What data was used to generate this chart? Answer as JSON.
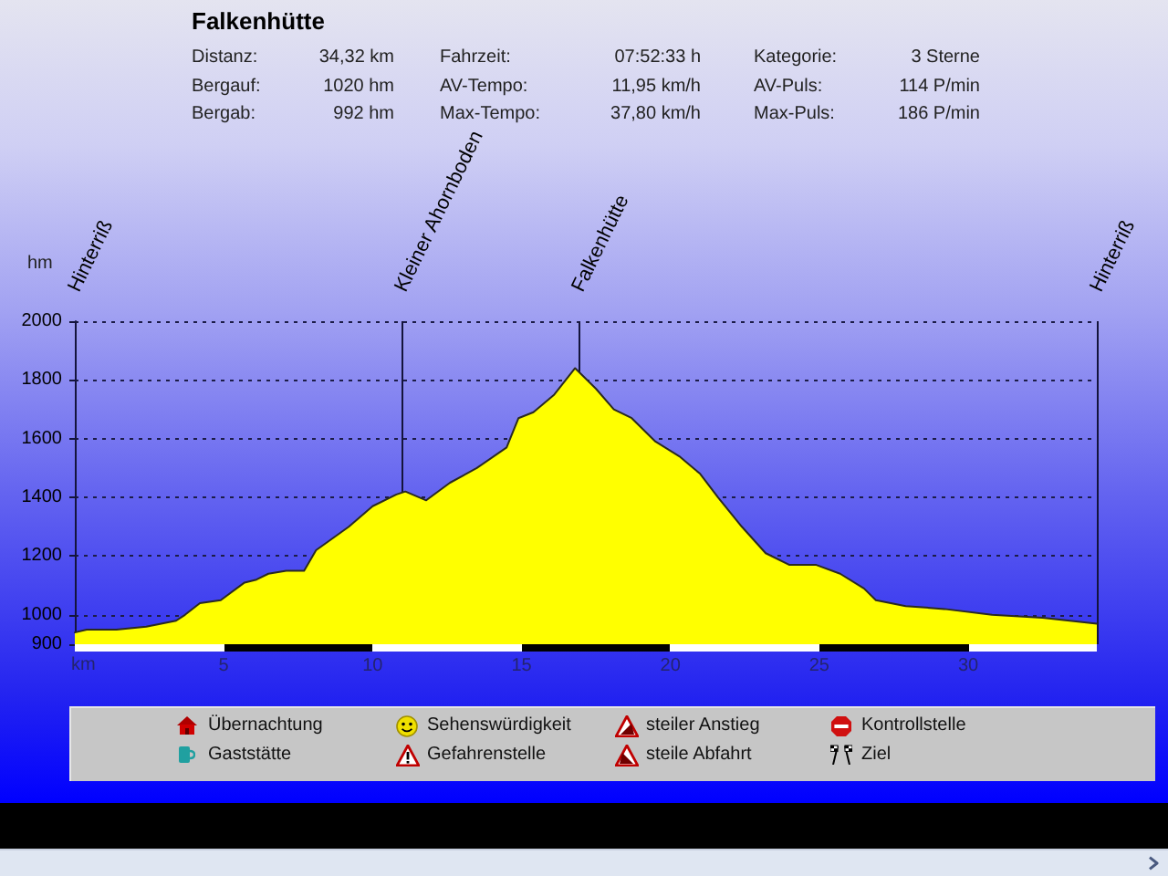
{
  "chart_data": {
    "type": "area",
    "title": "Falkenhütte",
    "xlabel": "km",
    "ylabel": "hm",
    "x": [
      0,
      0.4,
      1.4,
      2.4,
      3.4,
      3.7,
      4.2,
      4.9,
      5.7,
      6.1,
      6.5,
      7.1,
      7.7,
      8.1,
      9.2,
      10.0,
      10.8,
      11.1,
      11.8,
      12.6,
      13.5,
      14.5,
      14.9,
      15.4,
      16.1,
      16.8,
      17.5,
      18.1,
      18.7,
      19.5,
      20.3,
      21.0,
      21.6,
      22.4,
      23.2,
      24.0,
      24.9,
      25.7,
      26.5,
      26.9,
      27.9,
      29.2,
      30.8,
      32.5,
      34.32
    ],
    "series": [
      {
        "color": "#ffff00",
        "values": [
          940,
          950,
          950,
          960,
          980,
          1000,
          1040,
          1050,
          1110,
          1120,
          1140,
          1150,
          1150,
          1220,
          1300,
          1370,
          1410,
          1420,
          1390,
          1450,
          1500,
          1570,
          1670,
          1690,
          1750,
          1840,
          1770,
          1700,
          1670,
          1590,
          1540,
          1480,
          1400,
          1300,
          1210,
          1170,
          1170,
          1140,
          1090,
          1050,
          1030,
          1020,
          1000,
          990,
          970
        ]
      }
    ],
    "xlim": [
      0,
      34.32
    ],
    "xticks": [
      5,
      10,
      15,
      20,
      25,
      30
    ],
    "ylim": [
      900,
      2000
    ],
    "yticks": [
      900,
      1000,
      1200,
      1400,
      1600,
      1800,
      2000
    ],
    "grid": "y",
    "ref_lines": [
      {
        "axis": "x",
        "value": 0,
        "label": "Hinterriß",
        "color": "#14143c"
      },
      {
        "axis": "x",
        "value": 11.0,
        "label": "Kleiner Ahornboden",
        "color": "#14143c"
      },
      {
        "axis": "x",
        "value": 16.9,
        "label": "Falkenhütte",
        "color": "#14143c"
      },
      {
        "axis": "x",
        "value": 34.32,
        "label": "Hinterriß",
        "color": "#14143c"
      }
    ],
    "annotations": [
      "Distanz:",
      "34,32 km",
      "Fahrzeit:",
      "07:52:33 h",
      "Kategorie:",
      "3 Sterne",
      "Bergauf:",
      "1020 hm",
      "AV-Tempo:",
      "11,95 km/h",
      "AV-Puls:",
      "114 P/min",
      "Bergab:",
      "992 hm",
      "Max-Tempo:",
      "37,80 km/h",
      "Max-Puls:",
      "186 P/min",
      "Übernachtung",
      "Sehenswürdigkeit",
      "steiler Anstieg",
      "Kontrollstelle",
      "Gaststätte",
      "Gefahrenstelle",
      "steile Abfahrt",
      "Ziel"
    ]
  }
}
